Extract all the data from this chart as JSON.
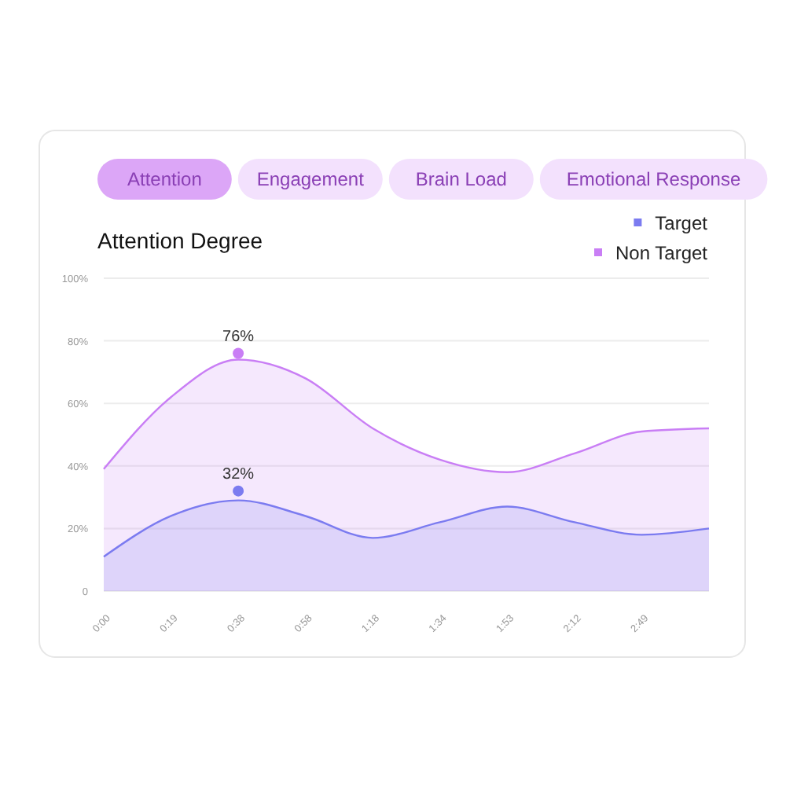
{
  "chart_data": {
    "type": "area",
    "title": "Attention Degree",
    "annotations": [
      "Attention",
      "Engagement",
      "Brain Load",
      "Emotional Response"
    ],
    "categories": [
      "0:00",
      "0:19",
      "0:38",
      "0:58",
      "1:18",
      "1:34",
      "1:53",
      "2:12",
      "2:49",
      null
    ],
    "ylim": [
      0,
      100
    ],
    "yticks": [
      0,
      {
        "value": 20,
        "label": "20%"
      },
      {
        "value": 40,
        "label": "40%"
      },
      {
        "value": 60,
        "label": "60%"
      },
      {
        "value": 80,
        "label": "80%"
      },
      {
        "value": 100,
        "label": "100%"
      }
    ],
    "grid": "y",
    "legend": "top right",
    "series": [
      {
        "name": "Non Target",
        "color": "#c97ef5",
        "values": [
          39,
          62,
          74,
          68,
          52,
          42,
          38,
          44,
          51,
          52
        ]
      },
      {
        "name": "Target",
        "color": "#7b7bf0",
        "values": [
          11,
          24,
          29,
          24,
          17,
          22,
          27,
          22,
          18,
          20
        ]
      },
      {
        "type": "scatter",
        "color": "#c97ef5",
        "x": [
          "0:38"
        ],
        "values": [
          76
        ],
        "value_labels": [
          "76%"
        ]
      },
      {
        "type": "scatter",
        "color": "#7b7bf0",
        "x": [
          "0:38"
        ],
        "values": [
          32
        ],
        "value_labels": [
          "32%"
        ]
      }
    ]
  }
}
